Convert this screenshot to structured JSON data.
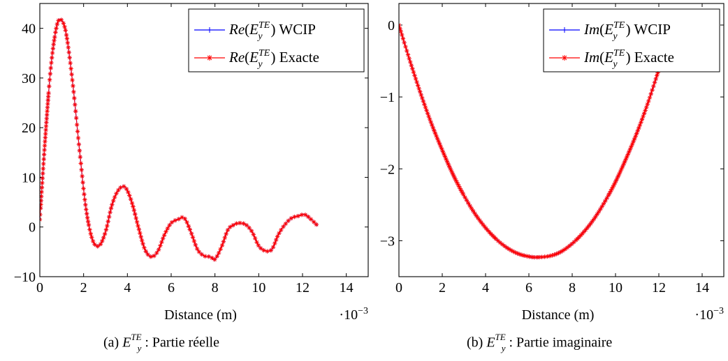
{
  "chart_data": [
    {
      "type": "line",
      "xlabel": "Distance (m)",
      "x_multiplier": "·10",
      "x_multiplier_exp": "−3",
      "xlim": [
        0,
        15
      ],
      "ylim": [
        -10,
        45
      ],
      "xticks": [
        "0",
        "2",
        "4",
        "6",
        "8",
        "10",
        "12",
        "14"
      ],
      "yticks": [
        "−10",
        "0",
        "10",
        "20",
        "30",
        "40"
      ],
      "legend_position": "top-right",
      "series": [
        {
          "name": "Re(E_y^TE) WCIP",
          "color": "#0000ff",
          "marker": "+"
        },
        {
          "name": "Re(E_y^TE) Exacte",
          "color": "#ff0000",
          "marker": "*"
        }
      ],
      "x": [
        0,
        0.25,
        0.5,
        0.75,
        0.95,
        1.2,
        1.5,
        1.8,
        2.1,
        2.4,
        2.7,
        3.0,
        3.3,
        3.6,
        3.9,
        4.2,
        4.5,
        4.8,
        5.1,
        5.4,
        5.7,
        6.0,
        6.3,
        6.6,
        6.9,
        7.2,
        7.5,
        7.8,
        8.0,
        8.3,
        8.6,
        8.9,
        9.1,
        9.4,
        9.7,
        10.0,
        10.3,
        10.6,
        10.9,
        11.2,
        11.5,
        11.8,
        12.1,
        12.4,
        12.7
      ],
      "values": [
        1.5,
        18,
        32,
        40,
        41.8,
        39,
        29,
        16,
        4,
        -2.5,
        -3.8,
        -1,
        4.5,
        7.5,
        8,
        5,
        0,
        -4.5,
        -6,
        -4.8,
        -1.5,
        0.8,
        1.5,
        1.8,
        -1,
        -4.5,
        -5.8,
        -6,
        -6.5,
        -4,
        -0.5,
        0.5,
        0.8,
        0.5,
        -1,
        -3.8,
        -4.8,
        -4.5,
        -1.5,
        0.5,
        1.8,
        2.2,
        2.5,
        1.5,
        0.2
      ],
      "caption_prefix": "(a) ",
      "caption_suffix": " : Partie réelle"
    },
    {
      "type": "line",
      "xlabel": "Distance (m)",
      "x_multiplier": "·10",
      "x_multiplier_exp": "−3",
      "xlim": [
        0,
        15
      ],
      "ylim": [
        -3.5,
        0.3
      ],
      "xticks": [
        "0",
        "2",
        "4",
        "6",
        "8",
        "10",
        "12",
        "14"
      ],
      "yticks": [
        "−3",
        "−2",
        "−1",
        "0"
      ],
      "legend_position": "top-right",
      "series": [
        {
          "name": "Im(E_y^TE) WCIP",
          "color": "#0000ff",
          "marker": "+"
        },
        {
          "name": "Im(E_y^TE) Exacte",
          "color": "#ff0000",
          "marker": "*"
        }
      ],
      "x": [
        0,
        0.5,
        1,
        1.5,
        2,
        2.5,
        3,
        3.5,
        4,
        4.5,
        5,
        5.5,
        6,
        6.4,
        7,
        7.5,
        8,
        8.5,
        9,
        9.5,
        10,
        10.5,
        11,
        11.5,
        12
      ],
      "values": [
        0,
        -0.49,
        -0.95,
        -1.37,
        -1.74,
        -2.08,
        -2.37,
        -2.62,
        -2.82,
        -2.98,
        -3.1,
        -3.18,
        -3.22,
        -3.23,
        -3.21,
        -3.15,
        -3.04,
        -2.89,
        -2.7,
        -2.46,
        -2.18,
        -1.85,
        -1.49,
        -1.08,
        -0.62
      ],
      "caption_prefix": "(b) ",
      "caption_suffix": " : Partie imaginaire"
    }
  ]
}
